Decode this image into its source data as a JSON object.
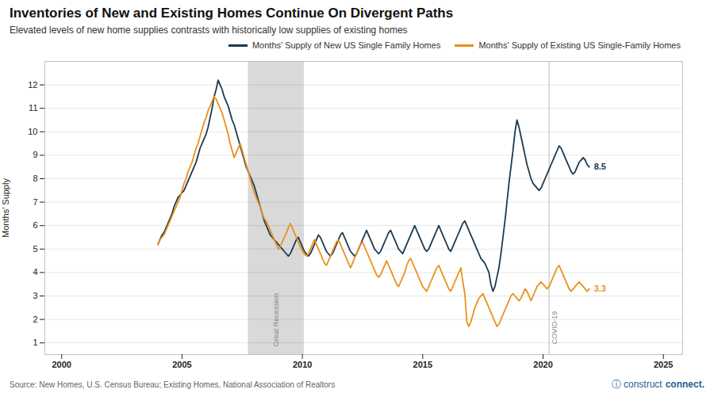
{
  "chart_data": {
    "type": "line",
    "title": "Inventories of New and Existing Homes Continue On Divergent Paths",
    "subtitle": "Elevated levels of new home supplies contrasts with historically low supplies of existing homes",
    "ylabel": "Months' Supply",
    "source": "Source: New Homes, U.S. Census Bureau; Existing Homes, National Association of Realtors",
    "branding": [
      {
        "text": "ⓘ construct",
        "color": "#2a6099"
      },
      {
        "text": "connect.",
        "color": "#2a6099"
      }
    ],
    "xlim": [
      1999.3,
      2025.8
    ],
    "xticks": [
      2000,
      2005,
      2010,
      2015,
      2020,
      2025
    ],
    "ylim": [
      0.5,
      13.0
    ],
    "yticks": [
      1,
      2,
      3,
      4,
      5,
      6,
      7,
      8,
      9,
      10,
      11,
      12
    ],
    "grid": true,
    "legend": "upper right",
    "annotations": [
      {
        "text": "Great Recession",
        "x_start": 2007.75,
        "x_end": 2010.08,
        "y": 0.85,
        "color": "#d9d9d9"
      },
      {
        "text": "COVID-19",
        "x": 2020.25,
        "y": 0.95,
        "color": "#bbbbbb"
      }
    ],
    "x": [
      2004,
      2004.083333,
      2004.166667,
      2004.25,
      2004.333333,
      2004.416667,
      2004.5,
      2004.583333,
      2004.666667,
      2004.75,
      2004.833333,
      2004.916667,
      2005,
      2005.083333,
      2005.166667,
      2005.25,
      2005.333333,
      2005.416667,
      2005.5,
      2005.583333,
      2005.666667,
      2005.75,
      2005.833333,
      2005.916667,
      2006,
      2006.083333,
      2006.166667,
      2006.25,
      2006.333333,
      2006.416667,
      2006.5,
      2006.583333,
      2006.666667,
      2006.75,
      2006.833333,
      2006.916667,
      2007,
      2007.083333,
      2007.166667,
      2007.25,
      2007.333333,
      2007.416667,
      2007.5,
      2007.583333,
      2007.666667,
      2007.75,
      2007.833333,
      2007.916667,
      2008,
      2008.083333,
      2008.166667,
      2008.25,
      2008.333333,
      2008.416667,
      2008.5,
      2008.583333,
      2008.666667,
      2008.75,
      2008.833333,
      2008.916667,
      2009,
      2009.083333,
      2009.166667,
      2009.25,
      2009.333333,
      2009.416667,
      2009.5,
      2009.583333,
      2009.666667,
      2009.75,
      2009.833333,
      2009.916667,
      2010,
      2010.083333,
      2010.166667,
      2010.25,
      2010.333333,
      2010.416667,
      2010.5,
      2010.583333,
      2010.666667,
      2010.75,
      2010.833333,
      2010.916667,
      2011,
      2011.083333,
      2011.166667,
      2011.25,
      2011.333333,
      2011.416667,
      2011.5,
      2011.583333,
      2011.666667,
      2011.75,
      2011.833333,
      2011.916667,
      2012,
      2012.083333,
      2012.166667,
      2012.25,
      2012.333333,
      2012.416667,
      2012.5,
      2012.583333,
      2012.666667,
      2012.75,
      2012.833333,
      2012.916667,
      2013,
      2013.083333,
      2013.166667,
      2013.25,
      2013.333333,
      2013.416667,
      2013.5,
      2013.583333,
      2013.666667,
      2013.75,
      2013.833333,
      2013.916667,
      2014,
      2014.083333,
      2014.166667,
      2014.25,
      2014.333333,
      2014.416667,
      2014.5,
      2014.583333,
      2014.666667,
      2014.75,
      2014.833333,
      2014.916667,
      2015,
      2015.083333,
      2015.166667,
      2015.25,
      2015.333333,
      2015.416667,
      2015.5,
      2015.583333,
      2015.666667,
      2015.75,
      2015.833333,
      2015.916667,
      2016,
      2016.083333,
      2016.166667,
      2016.25,
      2016.333333,
      2016.416667,
      2016.5,
      2016.583333,
      2016.666667,
      2016.75,
      2016.833333,
      2016.916667,
      2017,
      2017.083333,
      2017.166667,
      2017.25,
      2017.333333,
      2017.416667,
      2017.5,
      2017.583333,
      2017.666667,
      2017.75,
      2017.833333,
      2017.916667,
      2018,
      2018.083333,
      2018.166667,
      2018.25,
      2018.333333,
      2018.416667,
      2018.5,
      2018.583333,
      2018.666667,
      2018.75,
      2018.833333,
      2018.916667,
      2019,
      2019.083333,
      2019.166667,
      2019.25,
      2019.333333,
      2019.416667,
      2019.5,
      2019.583333,
      2019.666667,
      2019.75,
      2019.833333,
      2019.916667,
      2020,
      2020.083333,
      2020.166667,
      2020.25,
      2020.333333,
      2020.416667,
      2020.5,
      2020.583333,
      2020.666667,
      2020.75,
      2020.833333,
      2020.916667,
      2021,
      2021.083333,
      2021.166667,
      2021.25,
      2021.333333,
      2021.416667,
      2021.5,
      2021.583333,
      2021.666667,
      2021.75,
      2021.833333,
      2021.916667
    ],
    "series": [
      {
        "name": "Months' Supply of New US Single Family Homes",
        "color": "#1b3a52",
        "end_label": "8.5",
        "values": [
          5.2,
          5.4,
          5.6,
          5.7,
          5.9,
          6.1,
          6.3,
          6.5,
          6.8,
          7.0,
          7.2,
          7.3,
          7.4,
          7.5,
          7.7,
          7.9,
          8.1,
          8.3,
          8.5,
          8.7,
          9.0,
          9.3,
          9.5,
          9.7,
          9.9,
          10.2,
          10.6,
          11.0,
          11.5,
          11.8,
          12.2,
          12.0,
          11.8,
          11.5,
          11.3,
          11.1,
          10.8,
          10.5,
          10.3,
          10.0,
          9.7,
          9.4,
          9.1,
          8.8,
          8.5,
          8.3,
          8.1,
          7.9,
          7.7,
          7.4,
          7.1,
          6.8,
          6.5,
          6.2,
          6.0,
          5.8,
          5.6,
          5.5,
          5.4,
          5.3,
          5.2,
          5.1,
          5.0,
          4.9,
          4.8,
          4.7,
          4.8,
          5.0,
          5.2,
          5.4,
          5.5,
          5.3,
          5.1,
          4.9,
          4.8,
          4.7,
          4.8,
          5.0,
          5.2,
          5.4,
          5.6,
          5.5,
          5.3,
          5.1,
          4.9,
          4.8,
          4.7,
          4.8,
          5.0,
          5.2,
          5.4,
          5.6,
          5.7,
          5.5,
          5.3,
          5.1,
          4.9,
          4.8,
          4.7,
          4.8,
          5.0,
          5.2,
          5.4,
          5.6,
          5.8,
          5.6,
          5.4,
          5.2,
          5.0,
          4.9,
          4.8,
          4.9,
          5.1,
          5.3,
          5.5,
          5.7,
          5.8,
          5.6,
          5.4,
          5.2,
          5.0,
          4.9,
          4.8,
          5.0,
          5.2,
          5.4,
          5.6,
          5.8,
          6.0,
          5.8,
          5.6,
          5.4,
          5.2,
          5.0,
          4.9,
          5.0,
          5.2,
          5.4,
          5.6,
          5.8,
          6.0,
          5.8,
          5.6,
          5.4,
          5.2,
          5.0,
          4.9,
          5.1,
          5.3,
          5.5,
          5.7,
          5.9,
          6.1,
          6.2,
          6.0,
          5.8,
          5.6,
          5.4,
          5.2,
          5.0,
          4.8,
          4.6,
          4.5,
          4.4,
          4.2,
          4.0,
          3.5,
          3.2,
          3.4,
          3.8,
          4.2,
          4.8,
          5.5,
          6.2,
          7.0,
          7.8,
          8.5,
          9.2,
          10.0,
          10.5,
          10.2,
          9.8,
          9.4,
          9.0,
          8.6,
          8.3,
          8.0,
          7.8,
          7.7,
          7.6,
          7.5,
          7.6,
          7.8,
          8.0,
          8.2,
          8.4,
          8.6,
          8.8,
          9.0,
          9.2,
          9.4,
          9.3,
          9.1,
          8.9,
          8.7,
          8.5,
          8.3,
          8.2,
          8.3,
          8.5,
          8.7,
          8.8,
          8.9,
          8.8,
          8.6,
          8.5
        ]
      },
      {
        "name": "Months' Supply of Existing US Single-Family Homes",
        "color": "#e8921a",
        "end_label": "3.3",
        "values": [
          5.2,
          5.4,
          5.5,
          5.6,
          5.8,
          6.0,
          6.2,
          6.4,
          6.6,
          6.8,
          7.0,
          7.2,
          7.5,
          7.8,
          8.0,
          8.3,
          8.5,
          8.7,
          9.0,
          9.3,
          9.5,
          9.8,
          10.1,
          10.4,
          10.6,
          10.9,
          11.1,
          11.3,
          11.5,
          11.4,
          11.2,
          11.0,
          10.8,
          10.5,
          10.2,
          9.9,
          9.5,
          9.2,
          8.9,
          9.1,
          9.3,
          9.5,
          9.2,
          8.9,
          8.6,
          8.3,
          8.0,
          7.7,
          7.4,
          7.2,
          7.0,
          6.8,
          6.5,
          6.3,
          6.2,
          6.0,
          5.8,
          5.6,
          5.4,
          5.2,
          5.0,
          5.1,
          5.3,
          5.5,
          5.7,
          5.9,
          6.1,
          5.9,
          5.7,
          5.5,
          5.3,
          5.1,
          4.9,
          4.8,
          4.7,
          4.8,
          5.0,
          5.2,
          5.4,
          5.2,
          5.0,
          4.8,
          4.6,
          4.4,
          4.3,
          4.5,
          4.7,
          4.9,
          5.1,
          5.3,
          5.4,
          5.2,
          5.0,
          4.8,
          4.6,
          4.4,
          4.2,
          4.4,
          4.6,
          4.8,
          5.0,
          5.2,
          5.3,
          5.1,
          4.9,
          4.7,
          4.5,
          4.3,
          4.1,
          3.9,
          3.8,
          3.9,
          4.1,
          4.3,
          4.5,
          4.3,
          4.1,
          3.9,
          3.7,
          3.5,
          3.4,
          3.6,
          3.8,
          4.0,
          4.3,
          4.5,
          4.6,
          4.4,
          4.2,
          4.0,
          3.8,
          3.6,
          3.4,
          3.3,
          3.2,
          3.4,
          3.6,
          3.8,
          4.0,
          4.2,
          4.3,
          4.1,
          3.9,
          3.7,
          3.5,
          3.3,
          3.2,
          3.4,
          3.6,
          3.8,
          4.0,
          4.2,
          3.6,
          3.1,
          1.9,
          1.7,
          1.9,
          2.2,
          2.5,
          2.7,
          2.9,
          3.0,
          3.1,
          2.9,
          2.7,
          2.5,
          2.3,
          2.1,
          1.9,
          1.7,
          1.8,
          2.0,
          2.2,
          2.4,
          2.6,
          2.8,
          3.0,
          3.1,
          3.0,
          2.9,
          2.8,
          2.9,
          3.1,
          3.3,
          3.2,
          3.0,
          2.8,
          3.0,
          3.2,
          3.4,
          3.5,
          3.6,
          3.5,
          3.4,
          3.3,
          3.4,
          3.6,
          3.8,
          4.0,
          4.2,
          4.3,
          4.1,
          3.9,
          3.7,
          3.5,
          3.3,
          3.2,
          3.3,
          3.4,
          3.5,
          3.6,
          3.5,
          3.4,
          3.3,
          3.2,
          3.3
        ]
      }
    ]
  }
}
